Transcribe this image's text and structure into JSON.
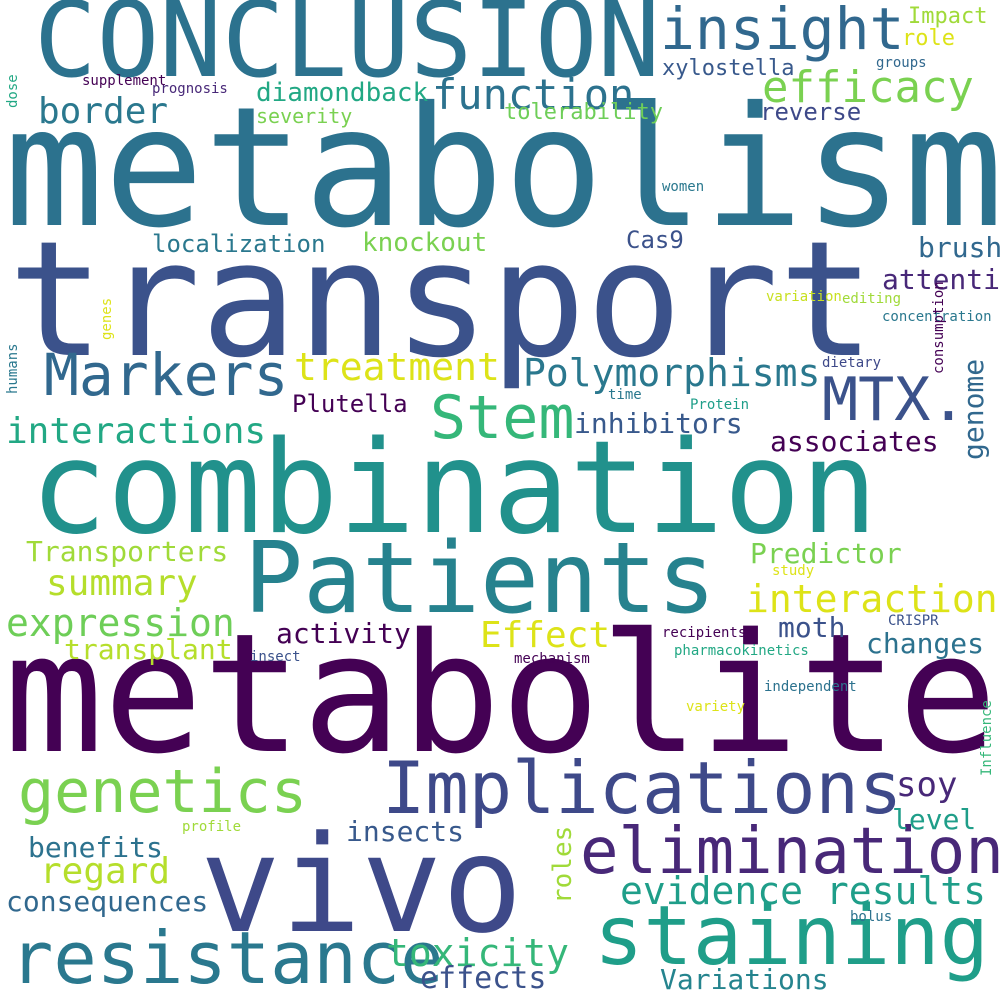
{
  "words": [
    {
      "text": "metabolism",
      "color": "#2c728e"
    },
    {
      "text": "transport",
      "color": "#3b528b"
    },
    {
      "text": "combination",
      "color": "#21918c"
    },
    {
      "text": "metabolite",
      "color": "#440154"
    },
    {
      "text": "CONCLUSION",
      "color": "#2c728e"
    },
    {
      "text": "vivo",
      "color": "#3e4989"
    },
    {
      "text": "Patients",
      "color": "#26828e"
    },
    {
      "text": "staining",
      "color": "#1f9e89"
    },
    {
      "text": "Implications",
      "color": "#3e4989"
    },
    {
      "text": "resistance",
      "color": "#2a788e"
    },
    {
      "text": "elimination",
      "color": "#482878"
    },
    {
      "text": "Markers",
      "color": "#31688e"
    },
    {
      "text": "genetics",
      "color": "#7ad151"
    },
    {
      "text": "MTX.",
      "color": "#3b528b"
    },
    {
      "text": "insight",
      "color": "#31688e"
    },
    {
      "text": "Stem",
      "color": "#35b779"
    },
    {
      "text": "Polymorphisms",
      "color": "#2a788e"
    },
    {
      "text": "efficacy",
      "color": "#7ad151"
    },
    {
      "text": "function",
      "color": "#2c728e"
    },
    {
      "text": "treatment",
      "color": "#dde318"
    },
    {
      "text": "interactions",
      "color": "#22a884"
    },
    {
      "text": "interaction",
      "color": "#dde318"
    },
    {
      "text": "evidence results",
      "color": "#1f9e89"
    },
    {
      "text": "expression",
      "color": "#6ece58"
    },
    {
      "text": "summary",
      "color": "#b5de2b"
    },
    {
      "text": "Effect",
      "color": "#dde318"
    },
    {
      "text": "toxicity",
      "color": "#35b779"
    },
    {
      "text": "border",
      "color": "#2a788e"
    },
    {
      "text": "regard",
      "color": "#b5de2b"
    },
    {
      "text": "Variations",
      "color": "#25848e"
    },
    {
      "text": "effects",
      "color": "#3b528b"
    },
    {
      "text": "consequences",
      "color": "#31688e"
    },
    {
      "text": "benefits",
      "color": "#2c728e"
    },
    {
      "text": "insects",
      "color": "#38598c"
    },
    {
      "text": "soy",
      "color": "#482878"
    },
    {
      "text": "level",
      "color": "#1f9e89"
    },
    {
      "text": "changes",
      "color": "#2c728e"
    },
    {
      "text": "moth",
      "color": "#3b528b"
    },
    {
      "text": "activity",
      "color": "#440154"
    },
    {
      "text": "transplant",
      "color": "#b5de2b"
    },
    {
      "text": "Transporters",
      "color": "#a0da39"
    },
    {
      "text": "Predictor",
      "color": "#7ad151"
    },
    {
      "text": "associates",
      "color": "#440154"
    },
    {
      "text": "inhibitors",
      "color": "#38598c"
    },
    {
      "text": "Plutella",
      "color": "#440154"
    },
    {
      "text": "attention",
      "color": "#482878"
    },
    {
      "text": "brush",
      "color": "#31688e"
    },
    {
      "text": "Cas9",
      "color": "#3b528b"
    },
    {
      "text": "knockout",
      "color": "#7ad151"
    },
    {
      "text": "localization",
      "color": "#2a788e"
    },
    {
      "text": "diamondback",
      "color": "#22a884"
    },
    {
      "text": "severity",
      "color": "#7ad151"
    },
    {
      "text": "tolerability",
      "color": "#6ece58"
    },
    {
      "text": "reverse",
      "color": "#3e4989"
    },
    {
      "text": "xylostella",
      "color": "#38598c"
    },
    {
      "text": "Impact",
      "color": "#a0da39"
    },
    {
      "text": "role",
      "color": "#dde318"
    },
    {
      "text": "groups",
      "color": "#31688e"
    },
    {
      "text": "prognosis",
      "color": "#482878"
    },
    {
      "text": "supplement",
      "color": "#440154"
    },
    {
      "text": "women",
      "color": "#2a788e"
    },
    {
      "text": "variation",
      "color": "#c8e020"
    },
    {
      "text": "editing",
      "color": "#a0da39"
    },
    {
      "text": "concentration",
      "color": "#2a788e"
    },
    {
      "text": "dietary",
      "color": "#3e4989"
    },
    {
      "text": "time",
      "color": "#2a788e"
    },
    {
      "text": "Protein",
      "color": "#1f9e89"
    },
    {
      "text": "study",
      "color": "#dde318"
    },
    {
      "text": "CRISPR",
      "color": "#3b528b"
    },
    {
      "text": "recipients",
      "color": "#440154"
    },
    {
      "text": "insect",
      "color": "#3b528b"
    },
    {
      "text": "mechanism",
      "color": "#440154"
    },
    {
      "text": "pharmacokinetics",
      "color": "#22a884"
    },
    {
      "text": "independent",
      "color": "#2c728e"
    },
    {
      "text": "variety",
      "color": "#dde318"
    },
    {
      "text": "profile",
      "color": "#a0da39"
    },
    {
      "text": "bolus",
      "color": "#2c728e"
    },
    {
      "text": "genome",
      "color": "#31688e"
    },
    {
      "text": "dose",
      "color": "#22a884"
    },
    {
      "text": "genes",
      "color": "#dde318"
    },
    {
      "text": "humans",
      "color": "#2a788e"
    },
    {
      "text": "consumption",
      "color": "#440154"
    },
    {
      "text": "Influence",
      "color": "#35b779"
    },
    {
      "text": "roles",
      "color": "#a0da39"
    }
  ]
}
